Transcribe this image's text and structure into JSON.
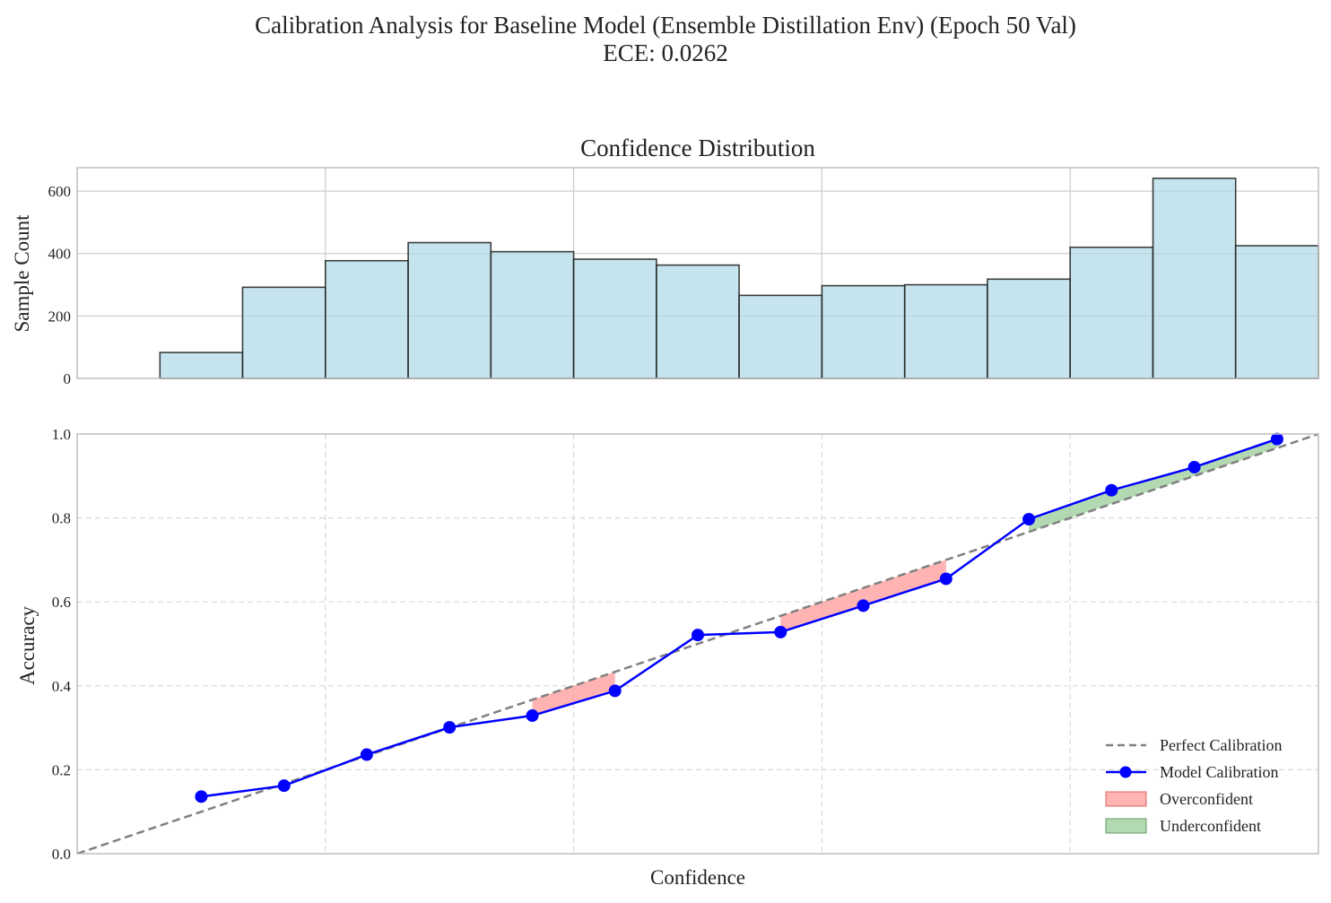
{
  "figure": {
    "suptitle_line1": "Calibration Analysis for Baseline Model (Ensemble Distillation Env) (Epoch 50 Val)",
    "suptitle_line2": "ECE: 0.0262"
  },
  "chart_data": [
    {
      "type": "bar",
      "title": "Confidence Distribution",
      "xlabel": "",
      "ylabel": "Sample Count",
      "bin_edges": [
        0.0,
        0.0667,
        0.1333,
        0.2,
        0.2667,
        0.3333,
        0.4,
        0.4667,
        0.5333,
        0.6,
        0.6667,
        0.7333,
        0.8,
        0.8667,
        0.9333,
        1.0
      ],
      "values": [
        0,
        83,
        292,
        377,
        435,
        406,
        382,
        363,
        266,
        297,
        300,
        318,
        420,
        641,
        425
      ],
      "xlim": [
        0,
        1
      ],
      "ylim": [
        0,
        675
      ],
      "yticks": [
        0,
        200,
        400,
        600
      ],
      "grid": true,
      "colors": {
        "fill": "#add8e6",
        "edge": "#1f1f1f"
      }
    },
    {
      "type": "line",
      "title": "",
      "xlabel": "Confidence",
      "ylabel": "Accuracy",
      "xlim": [
        0,
        1
      ],
      "ylim": [
        0,
        1
      ],
      "yticks": [
        0.0,
        0.2,
        0.4,
        0.6,
        0.8,
        1.0
      ],
      "grid": true,
      "legend_position": "bottom-right",
      "series": [
        {
          "name": "Perfect Calibration",
          "style": "dashed",
          "color": "#808080",
          "x": [
            0,
            1
          ],
          "y": [
            0,
            1
          ]
        },
        {
          "name": "Model Calibration",
          "style": "solid-markers",
          "color": "#0000ff",
          "x": [
            0.1,
            0.1667,
            0.2333,
            0.3,
            0.3667,
            0.4333,
            0.5,
            0.5667,
            0.6333,
            0.7,
            0.7667,
            0.8333,
            0.9,
            0.9667
          ],
          "y": [
            0.136,
            0.162,
            0.236,
            0.301,
            0.329,
            0.388,
            0.521,
            0.528,
            0.591,
            0.655,
            0.797,
            0.866,
            0.921,
            0.988
          ]
        }
      ],
      "regions": [
        {
          "name": "Overconfident",
          "color": "#ff9999"
        },
        {
          "name": "Underconfident",
          "color": "#99cc99"
        }
      ]
    }
  ]
}
